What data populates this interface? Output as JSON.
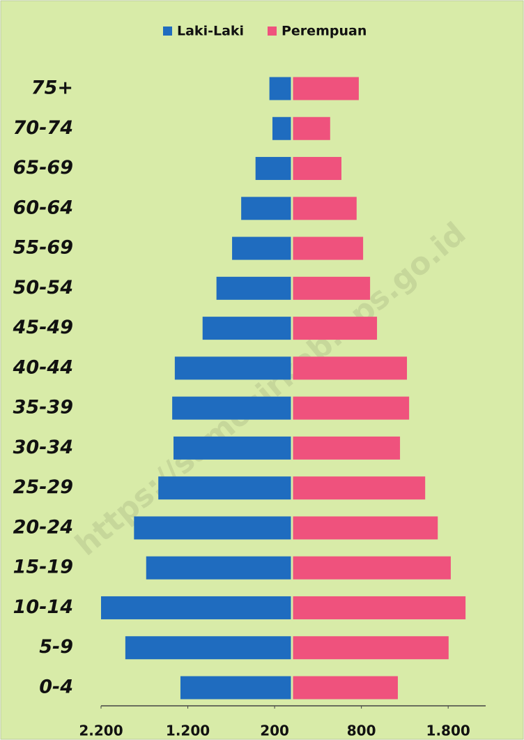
{
  "chart_data": {
    "type": "pyramid",
    "annotation": "https://samosirkab.bps.go.id",
    "categories": [
      "0-4",
      "5-9",
      "10-14",
      "15-19",
      "20-24",
      "25-29",
      "30-34",
      "35-39",
      "40-44",
      "45-49",
      "50-54",
      "55-69",
      "60-64",
      "65-69",
      "70-74",
      "75+"
    ],
    "series": [
      {
        "name": "Laki-Laki",
        "color": "#1f6cbf",
        "values": [
          -1285,
          -1920,
          -2200,
          -1680,
          -1820,
          -1540,
          -1365,
          -1380,
          -1350,
          -1030,
          -870,
          -690,
          -585,
          -420,
          -225,
          -260
        ]
      },
      {
        "name": "Perempuan",
        "color": "#ef527d",
        "values": [
          1220,
          1805,
          2000,
          1830,
          1680,
          1535,
          1245,
          1350,
          1325,
          980,
          900,
          820,
          745,
          570,
          440,
          770
        ]
      }
    ],
    "xlim": [
      -2200,
      2200
    ],
    "xticks": [
      {
        "value": -2200,
        "label": "2.200"
      },
      {
        "value": -1200,
        "label": "1.200"
      },
      {
        "value": -200,
        "label": "200"
      },
      {
        "value": 800,
        "label": "800"
      },
      {
        "value": 1800,
        "label": "1.800"
      }
    ],
    "legend": "top"
  }
}
